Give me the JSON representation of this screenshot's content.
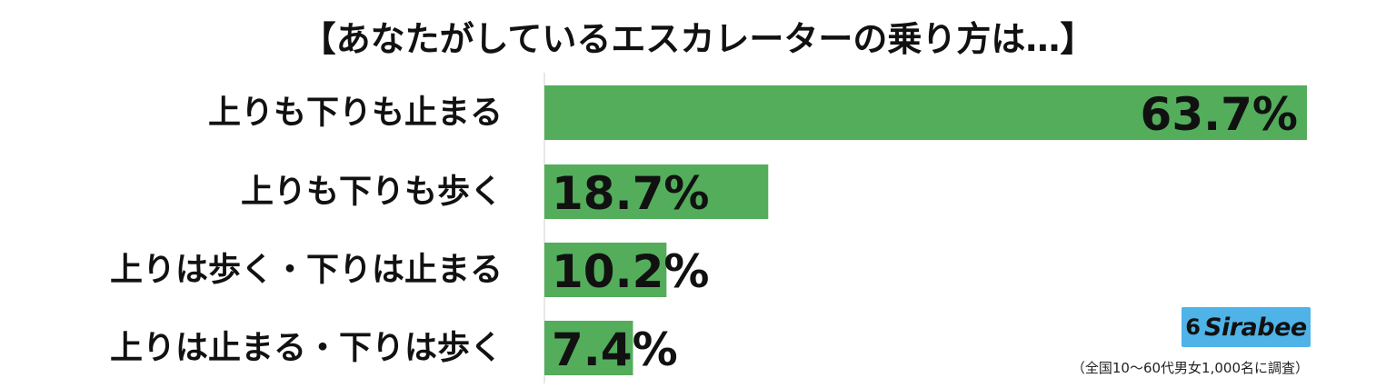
{
  "chart_data": {
    "type": "bar",
    "orientation": "horizontal",
    "title": "【あなたがしているエスカレーターの乗り方は…】",
    "categories": [
      "上りも下りも止まる",
      "上りも下りも歩く",
      "上りは歩く・下りは止まる",
      "上りは止まる・下りは歩く"
    ],
    "values": [
      63.7,
      18.7,
      10.2,
      7.4
    ],
    "value_suffix": "%",
    "xlim": [
      0,
      63.7
    ],
    "grid": false,
    "bar_color": "#53ad5b"
  },
  "logo": {
    "mark": "6",
    "text": "Sirabee",
    "color": "#4fb3e8"
  },
  "footnote": "（全国10〜60代男女1,000名に調査）"
}
